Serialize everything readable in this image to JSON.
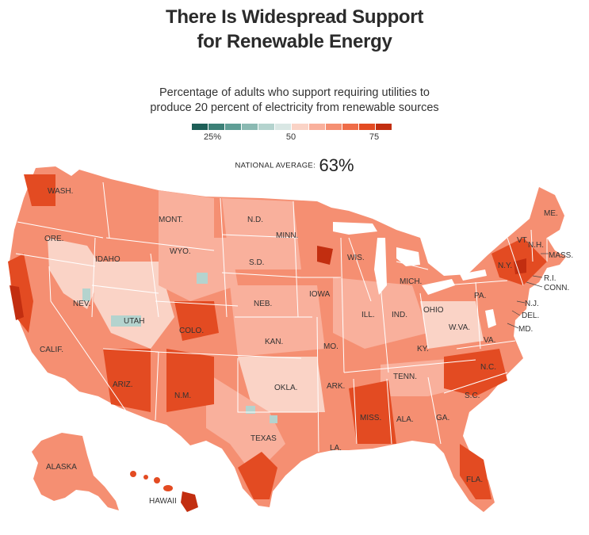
{
  "title_line1": "There Is Widespread Support",
  "title_line2": "for Renewable Energy",
  "subtitle_line1": "Percentage of adults who support requiring utilities to",
  "subtitle_line2": "produce 20 percent of electricity from renewable sources",
  "legend": {
    "colors": [
      "#1d5f57",
      "#3c8077",
      "#5f9e96",
      "#8ab9b2",
      "#b4d3ce",
      "#d9e7e4",
      "#fad3c6",
      "#f9b09c",
      "#f58f72",
      "#ef6c48",
      "#e34b22",
      "#c22e10"
    ],
    "ticks": [
      "25%",
      "50",
      "75"
    ]
  },
  "national_average": {
    "label": "NATIONAL AVERAGE:",
    "value": "63%"
  },
  "map_colors": {
    "base": "#f58f72",
    "light": "#fad3c6",
    "mid": "#f9b09c",
    "dark": "#e34b22",
    "darkest": "#c22e10",
    "teal": "#b4d3ce",
    "border": "#ffffff"
  },
  "state_labels": [
    "WASH.",
    "ORE.",
    "IDAHO",
    "MONT.",
    "WYO.",
    "N.D.",
    "S.D.",
    "MINN.",
    "WIS.",
    "MICH.",
    "NEV.",
    "UTAH",
    "CALIF.",
    "COLO.",
    "NEB.",
    "IOWA",
    "ILL.",
    "IND.",
    "OHIO",
    "PA.",
    "N.Y.",
    "VT.",
    "N.H.",
    "ME.",
    "MASS.",
    "R.I.",
    "CONN.",
    "N.J.",
    "DEL.",
    "MD.",
    "W.VA.",
    "VA.",
    "KAN.",
    "MO.",
    "KY.",
    "ARIZ.",
    "N.M.",
    "OKLA.",
    "ARK.",
    "TENN.",
    "N.C.",
    "S.C.",
    "GA.",
    "ALA.",
    "MISS.",
    "LA.",
    "TEXAS",
    "FLA.",
    "ALASKA",
    "HAWAII"
  ]
}
